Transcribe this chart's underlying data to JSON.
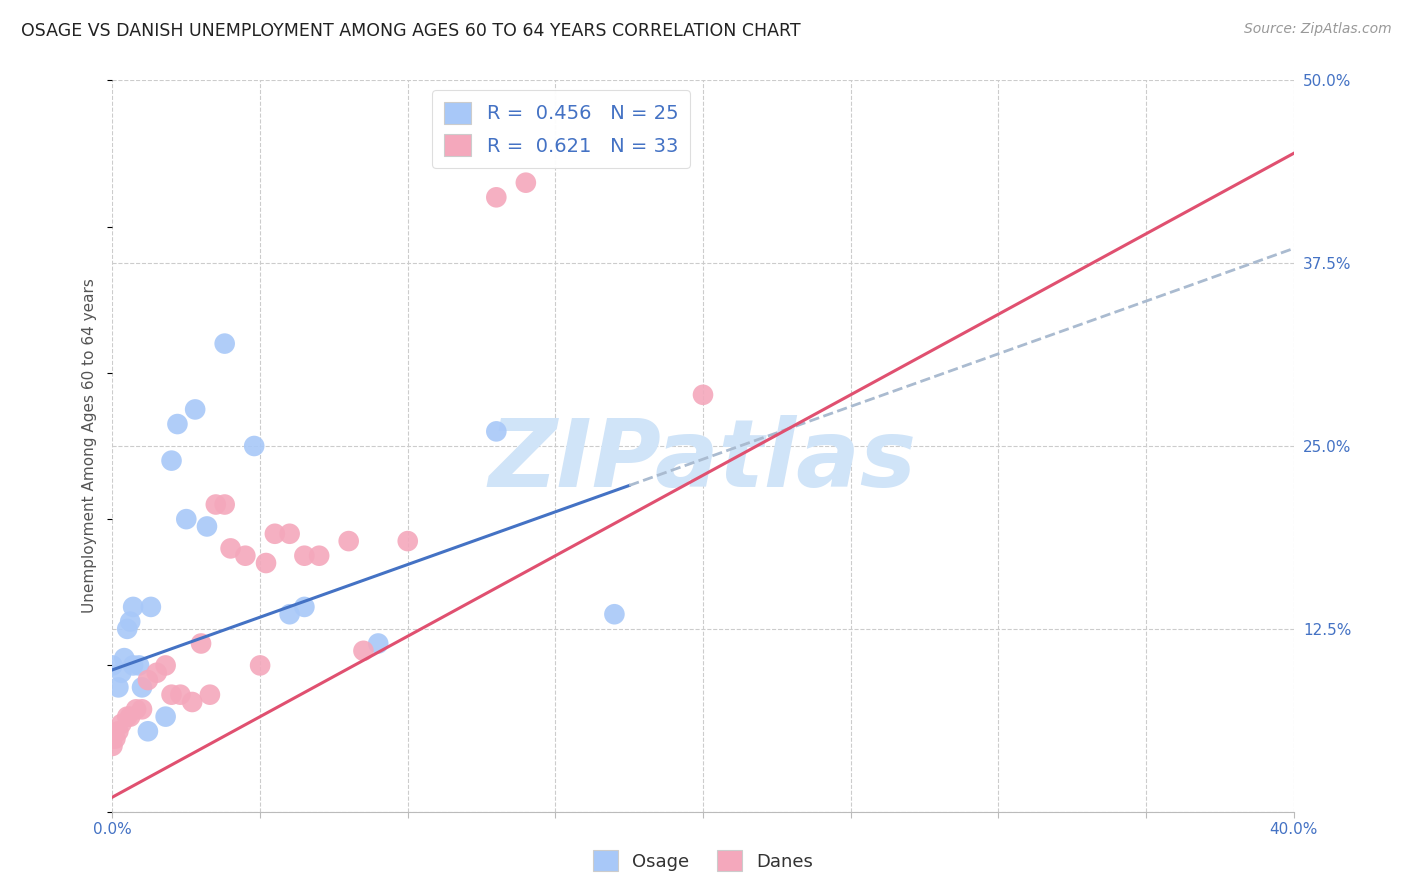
{
  "title": "OSAGE VS DANISH UNEMPLOYMENT AMONG AGES 60 TO 64 YEARS CORRELATION CHART",
  "source": "Source: ZipAtlas.com",
  "ylabel": "Unemployment Among Ages 60 to 64 years",
  "xlim": [
    0.0,
    0.4
  ],
  "ylim": [
    0.0,
    0.5
  ],
  "xticks": [
    0.0,
    0.05,
    0.1,
    0.15,
    0.2,
    0.25,
    0.3,
    0.35,
    0.4
  ],
  "xticklabels": [
    "0.0%",
    "",
    "",
    "",
    "",
    "",
    "",
    "",
    "40.0%"
  ],
  "yticks_right": [
    0.0,
    0.125,
    0.25,
    0.375,
    0.5
  ],
  "yticklabels_right": [
    "",
    "12.5%",
    "25.0%",
    "37.5%",
    "50.0%"
  ],
  "osage_color": "#a8c8f8",
  "danes_color": "#f4a8bc",
  "osage_R": 0.456,
  "osage_N": 25,
  "danes_R": 0.621,
  "danes_N": 33,
  "watermark": "ZIPatlas",
  "watermark_color": "#d0e4f8",
  "legend_label_1": "R =  0.456   N = 25",
  "legend_label_2": "R =  0.621   N = 33",
  "osage_points": [
    [
      0.0,
      0.1
    ],
    [
      0.002,
      0.085
    ],
    [
      0.003,
      0.095
    ],
    [
      0.004,
      0.105
    ],
    [
      0.005,
      0.125
    ],
    [
      0.006,
      0.13
    ],
    [
      0.007,
      0.14
    ],
    [
      0.007,
      0.1
    ],
    [
      0.009,
      0.1
    ],
    [
      0.01,
      0.085
    ],
    [
      0.012,
      0.055
    ],
    [
      0.013,
      0.14
    ],
    [
      0.018,
      0.065
    ],
    [
      0.02,
      0.24
    ],
    [
      0.022,
      0.265
    ],
    [
      0.025,
      0.2
    ],
    [
      0.028,
      0.275
    ],
    [
      0.032,
      0.195
    ],
    [
      0.038,
      0.32
    ],
    [
      0.048,
      0.25
    ],
    [
      0.06,
      0.135
    ],
    [
      0.065,
      0.14
    ],
    [
      0.09,
      0.115
    ],
    [
      0.13,
      0.26
    ],
    [
      0.17,
      0.135
    ]
  ],
  "danes_points": [
    [
      0.0,
      0.045
    ],
    [
      0.0,
      0.05
    ],
    [
      0.001,
      0.05
    ],
    [
      0.002,
      0.055
    ],
    [
      0.003,
      0.06
    ],
    [
      0.005,
      0.065
    ],
    [
      0.006,
      0.065
    ],
    [
      0.008,
      0.07
    ],
    [
      0.01,
      0.07
    ],
    [
      0.012,
      0.09
    ],
    [
      0.015,
      0.095
    ],
    [
      0.018,
      0.1
    ],
    [
      0.02,
      0.08
    ],
    [
      0.023,
      0.08
    ],
    [
      0.027,
      0.075
    ],
    [
      0.03,
      0.115
    ],
    [
      0.033,
      0.08
    ],
    [
      0.035,
      0.21
    ],
    [
      0.038,
      0.21
    ],
    [
      0.04,
      0.18
    ],
    [
      0.045,
      0.175
    ],
    [
      0.05,
      0.1
    ],
    [
      0.052,
      0.17
    ],
    [
      0.055,
      0.19
    ],
    [
      0.06,
      0.19
    ],
    [
      0.065,
      0.175
    ],
    [
      0.07,
      0.175
    ],
    [
      0.08,
      0.185
    ],
    [
      0.085,
      0.11
    ],
    [
      0.1,
      0.185
    ],
    [
      0.13,
      0.42
    ],
    [
      0.14,
      0.43
    ],
    [
      0.2,
      0.285
    ]
  ],
  "osage_line_color": "#4472c4",
  "danes_line_color": "#e05070",
  "osage_line_intercept": 0.097,
  "osage_line_slope": 0.72,
  "osage_line_xmax": 0.175,
  "danes_line_intercept": 0.01,
  "danes_line_slope": 1.1,
  "bg_color": "#ffffff",
  "grid_color": "#cccccc",
  "extension_color": "#aabbd0"
}
